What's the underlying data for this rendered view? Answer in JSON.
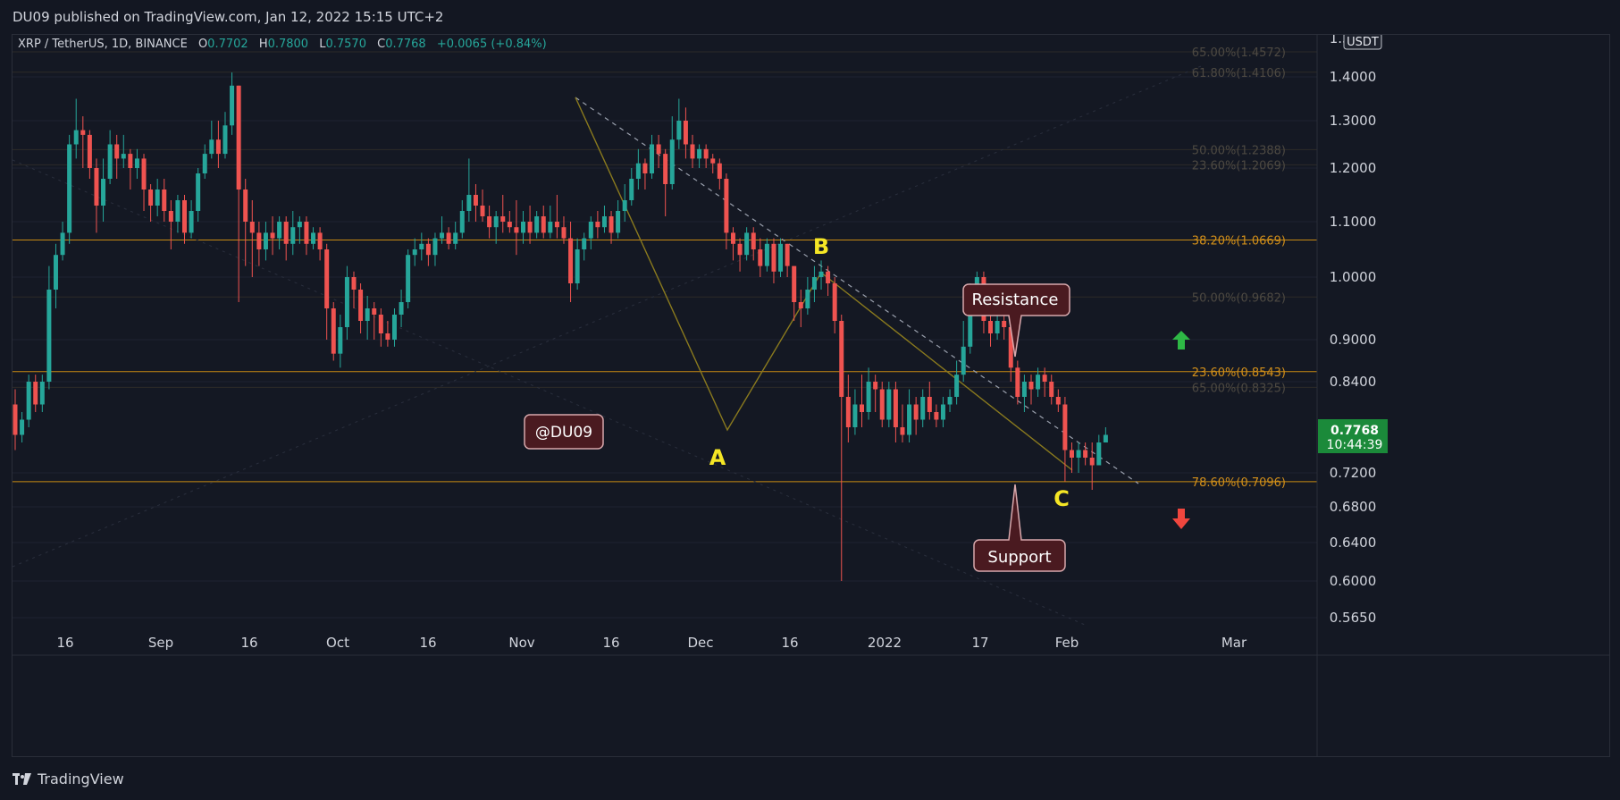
{
  "header": {
    "publisher": "DU09 published on TradingView.com, Jan 12, 2022 15:15 UTC+2"
  },
  "legend": {
    "symbol": "XRP / TetherUS, 1D, BINANCE",
    "o_label": "O",
    "o_value": "0.7702",
    "h_label": "H",
    "h_value": "0.7800",
    "l_label": "L",
    "l_value": "0.7570",
    "c_label": "C",
    "c_value": "0.7768",
    "change": "+0.0065 (+0.84%)"
  },
  "footer": {
    "brand": "TradingView"
  },
  "colors": {
    "background": "#141823",
    "up": "#26a69a",
    "down": "#ef5350",
    "fib_line": "#c88a12",
    "callout_bg": "#4a1a20",
    "price_badge": "#1b8a3a"
  },
  "chart_data": {
    "type": "candlestick",
    "currency": "USDT",
    "price_axis": [
      "1.5000",
      "1.4000",
      "1.3000",
      "1.2000",
      "1.1000",
      "1.0000",
      "0.9000",
      "0.8400",
      "0.7200",
      "0.6800",
      "0.6400",
      "0.6000",
      "0.5650"
    ],
    "time_axis": [
      "16",
      "Sep",
      "16",
      "Oct",
      "16",
      "Nov",
      "16",
      "Dec",
      "16",
      "2022",
      "17",
      "Feb",
      "Mar"
    ],
    "last_price": "0.7768",
    "countdown": "10:44:39",
    "fib_levels": [
      {
        "label": "65.00%(1.4572)",
        "price": 1.4572,
        "dim": true
      },
      {
        "label": "61.80%(1.4106)",
        "price": 1.4106,
        "dim": true
      },
      {
        "label": "50.00%(1.2388)",
        "price": 1.2388,
        "dim": true
      },
      {
        "label": "23.60%(1.2069)",
        "price": 1.2069,
        "dim": true
      },
      {
        "label": "38.20%(1.0669)",
        "price": 1.0669,
        "dim": false
      },
      {
        "label": "50.00%(0.9682)",
        "price": 0.9682,
        "dim": true
      },
      {
        "label": "23.60%(0.8543)",
        "price": 0.8543,
        "dim": false
      },
      {
        "label": "65.00%(0.8325)",
        "price": 0.8325,
        "dim": true
      },
      {
        "label": "78.60%(0.7096)",
        "price": 0.7096,
        "dim": false
      }
    ],
    "wave_points": {
      "A": "A",
      "B": "B",
      "C": "C"
    },
    "annotations": {
      "watermark": "@DU09",
      "resistance": "Resistance",
      "support": "Support"
    },
    "candles": [
      [
        0.81,
        0.77,
        0.83,
        0.75
      ],
      [
        0.77,
        0.79,
        0.8,
        0.76
      ],
      [
        0.79,
        0.84,
        0.85,
        0.78
      ],
      [
        0.84,
        0.81,
        0.85,
        0.8
      ],
      [
        0.81,
        0.84,
        0.85,
        0.8
      ],
      [
        0.84,
        0.98,
        1.02,
        0.83
      ],
      [
        0.98,
        1.04,
        1.06,
        0.95
      ],
      [
        1.04,
        1.08,
        1.1,
        1.03
      ],
      [
        1.08,
        1.25,
        1.27,
        1.06
      ],
      [
        1.25,
        1.28,
        1.35,
        1.22
      ],
      [
        1.28,
        1.27,
        1.31,
        1.2
      ],
      [
        1.27,
        1.2,
        1.28,
        1.18
      ],
      [
        1.2,
        1.13,
        1.22,
        1.08
      ],
      [
        1.13,
        1.18,
        1.22,
        1.1
      ],
      [
        1.18,
        1.25,
        1.28,
        1.17
      ],
      [
        1.25,
        1.22,
        1.27,
        1.18
      ],
      [
        1.22,
        1.23,
        1.27,
        1.2
      ],
      [
        1.23,
        1.2,
        1.24,
        1.16
      ],
      [
        1.2,
        1.22,
        1.24,
        1.18
      ],
      [
        1.22,
        1.16,
        1.23,
        1.12
      ],
      [
        1.16,
        1.13,
        1.17,
        1.1
      ],
      [
        1.13,
        1.16,
        1.18,
        1.11
      ],
      [
        1.16,
        1.12,
        1.18,
        1.1
      ],
      [
        1.12,
        1.1,
        1.14,
        1.05
      ],
      [
        1.1,
        1.14,
        1.15,
        1.08
      ],
      [
        1.14,
        1.08,
        1.15,
        1.06
      ],
      [
        1.08,
        1.12,
        1.14,
        1.07
      ],
      [
        1.12,
        1.19,
        1.2,
        1.1
      ],
      [
        1.19,
        1.23,
        1.25,
        1.18
      ],
      [
        1.23,
        1.26,
        1.3,
        1.22
      ],
      [
        1.26,
        1.23,
        1.3,
        1.2
      ],
      [
        1.23,
        1.29,
        1.32,
        1.22
      ],
      [
        1.29,
        1.38,
        1.41,
        1.27
      ],
      [
        1.38,
        1.16,
        1.38,
        0.96
      ],
      [
        1.16,
        1.1,
        1.18,
        1.02
      ],
      [
        1.1,
        1.08,
        1.14,
        1.0
      ],
      [
        1.08,
        1.05,
        1.1,
        1.02
      ],
      [
        1.05,
        1.08,
        1.1,
        1.03
      ],
      [
        1.08,
        1.07,
        1.11,
        1.04
      ],
      [
        1.07,
        1.1,
        1.11,
        1.05
      ],
      [
        1.1,
        1.06,
        1.11,
        1.03
      ],
      [
        1.06,
        1.09,
        1.12,
        1.04
      ],
      [
        1.09,
        1.1,
        1.11,
        1.06
      ],
      [
        1.1,
        1.06,
        1.11,
        1.04
      ],
      [
        1.06,
        1.08,
        1.09,
        1.05
      ],
      [
        1.08,
        1.05,
        1.09,
        1.03
      ],
      [
        1.05,
        0.95,
        1.06,
        0.9
      ],
      [
        0.95,
        0.88,
        0.96,
        0.87
      ],
      [
        0.88,
        0.92,
        0.94,
        0.86
      ],
      [
        0.92,
        1.0,
        1.02,
        0.9
      ],
      [
        1.0,
        0.98,
        1.01,
        0.95
      ],
      [
        0.98,
        0.93,
        0.99,
        0.91
      ],
      [
        0.93,
        0.95,
        0.97,
        0.9
      ],
      [
        0.95,
        0.94,
        0.96,
        0.9
      ],
      [
        0.94,
        0.91,
        0.95,
        0.89
      ],
      [
        0.91,
        0.9,
        0.93,
        0.89
      ],
      [
        0.9,
        0.94,
        0.95,
        0.89
      ],
      [
        0.94,
        0.96,
        0.98,
        0.92
      ],
      [
        0.96,
        1.04,
        1.05,
        0.95
      ],
      [
        1.04,
        1.05,
        1.07,
        1.02
      ],
      [
        1.05,
        1.06,
        1.08,
        1.03
      ],
      [
        1.06,
        1.04,
        1.07,
        1.02
      ],
      [
        1.04,
        1.07,
        1.08,
        1.02
      ],
      [
        1.07,
        1.08,
        1.11,
        1.06
      ],
      [
        1.08,
        1.06,
        1.09,
        1.05
      ],
      [
        1.06,
        1.08,
        1.1,
        1.05
      ],
      [
        1.08,
        1.12,
        1.14,
        1.07
      ],
      [
        1.12,
        1.15,
        1.22,
        1.1
      ],
      [
        1.15,
        1.13,
        1.17,
        1.1
      ],
      [
        1.13,
        1.11,
        1.16,
        1.1
      ],
      [
        1.11,
        1.09,
        1.13,
        1.07
      ],
      [
        1.09,
        1.11,
        1.12,
        1.06
      ],
      [
        1.11,
        1.1,
        1.15,
        1.08
      ],
      [
        1.1,
        1.09,
        1.12,
        1.08
      ],
      [
        1.09,
        1.08,
        1.14,
        1.04
      ],
      [
        1.08,
        1.1,
        1.12,
        1.06
      ],
      [
        1.1,
        1.08,
        1.13,
        1.06
      ],
      [
        1.08,
        1.11,
        1.12,
        1.07
      ],
      [
        1.11,
        1.08,
        1.13,
        1.07
      ],
      [
        1.08,
        1.1,
        1.13,
        1.07
      ],
      [
        1.1,
        1.09,
        1.15,
        1.07
      ],
      [
        1.09,
        1.07,
        1.11,
        1.06
      ],
      [
        1.07,
        0.99,
        1.1,
        0.96
      ],
      [
        0.99,
        1.05,
        1.07,
        0.98
      ],
      [
        1.05,
        1.07,
        1.08,
        1.03
      ],
      [
        1.07,
        1.1,
        1.11,
        1.05
      ],
      [
        1.1,
        1.09,
        1.12,
        1.07
      ],
      [
        1.09,
        1.11,
        1.13,
        1.08
      ],
      [
        1.11,
        1.08,
        1.12,
        1.06
      ],
      [
        1.08,
        1.12,
        1.14,
        1.07
      ],
      [
        1.12,
        1.14,
        1.17,
        1.1
      ],
      [
        1.14,
        1.18,
        1.2,
        1.13
      ],
      [
        1.18,
        1.21,
        1.24,
        1.16
      ],
      [
        1.21,
        1.19,
        1.22,
        1.16
      ],
      [
        1.19,
        1.25,
        1.27,
        1.18
      ],
      [
        1.25,
        1.23,
        1.27,
        1.2
      ],
      [
        1.23,
        1.17,
        1.24,
        1.11
      ],
      [
        1.17,
        1.26,
        1.31,
        1.16
      ],
      [
        1.26,
        1.3,
        1.35,
        1.24
      ],
      [
        1.3,
        1.25,
        1.33,
        1.22
      ],
      [
        1.25,
        1.22,
        1.27,
        1.2
      ],
      [
        1.22,
        1.24,
        1.25,
        1.2
      ],
      [
        1.24,
        1.22,
        1.25,
        1.2
      ],
      [
        1.22,
        1.21,
        1.23,
        1.19
      ],
      [
        1.21,
        1.18,
        1.22,
        1.16
      ],
      [
        1.18,
        1.08,
        1.19,
        1.05
      ],
      [
        1.08,
        1.06,
        1.09,
        1.03
      ],
      [
        1.06,
        1.04,
        1.07,
        1.01
      ],
      [
        1.04,
        1.08,
        1.09,
        1.03
      ],
      [
        1.08,
        1.05,
        1.09,
        1.03
      ],
      [
        1.05,
        1.02,
        1.07,
        1.0
      ],
      [
        1.02,
        1.06,
        1.07,
        1.01
      ],
      [
        1.06,
        1.01,
        1.07,
        0.99
      ],
      [
        1.01,
        1.06,
        1.07,
        1.0
      ],
      [
        1.06,
        1.02,
        1.06,
        1.0
      ],
      [
        1.02,
        0.96,
        1.02,
        0.93
      ],
      [
        0.96,
        0.95,
        0.98,
        0.92
      ],
      [
        0.95,
        0.98,
        1.0,
        0.94
      ],
      [
        0.98,
        1.0,
        1.02,
        0.96
      ],
      [
        1.0,
        1.01,
        1.03,
        0.98
      ],
      [
        1.01,
        0.99,
        1.02,
        0.97
      ],
      [
        0.99,
        0.93,
        1.0,
        0.91
      ],
      [
        0.93,
        0.82,
        0.94,
        0.6
      ],
      [
        0.82,
        0.78,
        0.85,
        0.76
      ],
      [
        0.78,
        0.81,
        0.83,
        0.77
      ],
      [
        0.81,
        0.8,
        0.85,
        0.78
      ],
      [
        0.8,
        0.84,
        0.86,
        0.79
      ],
      [
        0.84,
        0.83,
        0.85,
        0.8
      ],
      [
        0.83,
        0.79,
        0.84,
        0.78
      ],
      [
        0.79,
        0.83,
        0.84,
        0.78
      ],
      [
        0.83,
        0.78,
        0.84,
        0.76
      ],
      [
        0.78,
        0.77,
        0.81,
        0.76
      ],
      [
        0.77,
        0.81,
        0.83,
        0.76
      ],
      [
        0.81,
        0.79,
        0.82,
        0.77
      ],
      [
        0.79,
        0.82,
        0.83,
        0.78
      ],
      [
        0.82,
        0.8,
        0.84,
        0.79
      ],
      [
        0.8,
        0.79,
        0.81,
        0.78
      ],
      [
        0.79,
        0.81,
        0.82,
        0.78
      ],
      [
        0.81,
        0.82,
        0.83,
        0.8
      ],
      [
        0.82,
        0.85,
        0.87,
        0.81
      ],
      [
        0.85,
        0.89,
        0.93,
        0.84
      ],
      [
        0.89,
        0.96,
        0.99,
        0.88
      ],
      [
        0.96,
        1.0,
        1.01,
        0.94
      ],
      [
        1.0,
        0.93,
        1.01,
        0.91
      ],
      [
        0.93,
        0.91,
        0.94,
        0.89
      ],
      [
        0.91,
        0.93,
        0.94,
        0.9
      ],
      [
        0.93,
        0.92,
        0.96,
        0.9
      ],
      [
        0.92,
        0.86,
        0.93,
        0.84
      ],
      [
        0.86,
        0.82,
        0.87,
        0.81
      ],
      [
        0.82,
        0.84,
        0.85,
        0.8
      ],
      [
        0.84,
        0.83,
        0.85,
        0.81
      ],
      [
        0.83,
        0.85,
        0.86,
        0.82
      ],
      [
        0.85,
        0.84,
        0.86,
        0.82
      ],
      [
        0.84,
        0.82,
        0.85,
        0.81
      ],
      [
        0.82,
        0.81,
        0.83,
        0.8
      ],
      [
        0.81,
        0.75,
        0.82,
        0.71
      ],
      [
        0.75,
        0.74,
        0.76,
        0.72
      ],
      [
        0.74,
        0.75,
        0.76,
        0.72
      ],
      [
        0.75,
        0.74,
        0.76,
        0.73
      ],
      [
        0.74,
        0.73,
        0.76,
        0.7
      ],
      [
        0.73,
        0.76,
        0.77,
        0.73
      ],
      [
        0.76,
        0.77,
        0.78,
        0.76
      ]
    ]
  }
}
